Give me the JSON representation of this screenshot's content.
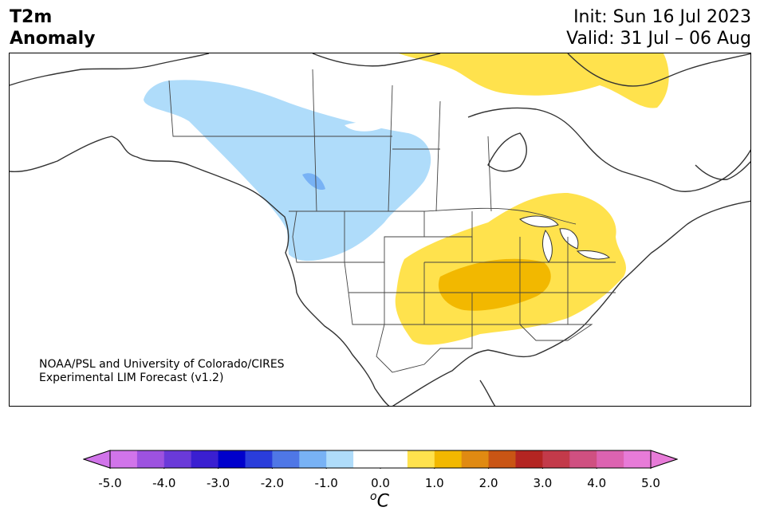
{
  "header": {
    "title_line1": "T2m",
    "title_line2": "Anomaly",
    "init_label": "Init: Sun 16 Jul 2023",
    "valid_label": "Valid: 31 Jul – 06 Aug"
  },
  "credit": {
    "line1": "NOAA/PSL and University of Colorado/CIRES",
    "line2": "Experimental LIM Forecast (v1.2)"
  },
  "colorbar": {
    "unit_symbol": "o",
    "unit_letter": "C",
    "tick_labels": [
      "-5.0",
      "-4.0",
      "-3.0",
      "-2.0",
      "-1.0",
      "0.0",
      "1.0",
      "2.0",
      "3.0",
      "4.0",
      "5.0"
    ],
    "colors": [
      "#d174ea",
      "#9d52e0",
      "#6a3ad9",
      "#3a1fd1",
      "#0000cc",
      "#2a3ddb",
      "#4f77e6",
      "#78b2f5",
      "#afdcfa",
      "#ffffff",
      "#ffffff",
      "#ffe24d",
      "#f2b800",
      "#e08a12",
      "#c95514",
      "#b42522",
      "#c33a4a",
      "#cf5081",
      "#dc63b1",
      "#e77bd8"
    ],
    "extend_low_color": "#d174ea",
    "extend_high_color": "#e77bd8"
  },
  "map": {
    "region": "North America",
    "anomaly_colors": {
      "light_blue": "#afdcfa",
      "mid_blue": "#78b2f5",
      "yellow": "#ffe24d",
      "gold": "#f2b800"
    }
  }
}
